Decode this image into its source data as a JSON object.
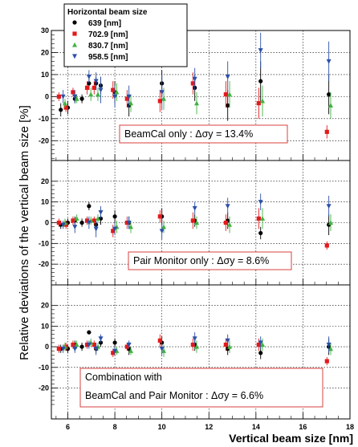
{
  "chart_data": {
    "type": "scatter",
    "ylabel": "Relative deviations of the vertical beam size [%]",
    "xlabel": "Vertical beam size [nm]",
    "xlim": [
      5.3,
      18
    ],
    "x_ticks": [
      "6",
      "8",
      "10",
      "12",
      "14",
      "16",
      "18"
    ],
    "legend": {
      "title": "Horizontal beam size",
      "placement": "top-left",
      "entries": [
        {
          "label": "639 [nm]",
          "color": "#000000",
          "marker": "circle"
        },
        {
          "label": "702.9 [nm]",
          "color": "#e31a1c",
          "marker": "square"
        },
        {
          "label": "830.7 [nm]",
          "color": "#41b341",
          "marker": "triangle-up"
        },
        {
          "label": "958.5 [nm]",
          "color": "#2c4fa8",
          "marker": "triangle-down"
        }
      ]
    },
    "grid": true,
    "panels": [
      {
        "annotation_lines": [
          "BeamCal only : Δσy = 13.4%"
        ],
        "ylim": [
          -30,
          30
        ],
        "y_ticks": [
          "30",
          "20",
          "10",
          "0",
          "-10",
          "-20"
        ],
        "series": [
          {
            "name": "639 [nm]",
            "points": [
              {
                "x": 5.7,
                "y": -6,
                "err": 3
              },
              {
                "x": 6.0,
                "y": -5,
                "err": 3
              },
              {
                "x": 6.3,
                "y": -1,
                "err": 2
              },
              {
                "x": 6.6,
                "y": -1,
                "err": 2
              },
              {
                "x": 6.9,
                "y": 6,
                "err": 3
              },
              {
                "x": 7.2,
                "y": 6,
                "err": 3
              },
              {
                "x": 7.4,
                "y": 5,
                "err": 4
              },
              {
                "x": 8.0,
                "y": 2,
                "err": 5
              },
              {
                "x": 8.6,
                "y": -4,
                "err": 5
              },
              {
                "x": 10.0,
                "y": 6,
                "err": 6
              },
              {
                "x": 11.4,
                "y": 4,
                "err": 6
              },
              {
                "x": 12.8,
                "y": -4,
                "err": 7
              },
              {
                "x": 14.2,
                "y": 7,
                "err": 9
              },
              {
                "x": 17.1,
                "y": 1,
                "err": 9
              }
            ]
          },
          {
            "name": "702.9 [nm]",
            "points": [
              {
                "x": 5.7,
                "y": 0,
                "err": 2
              },
              {
                "x": 6.0,
                "y": -5,
                "err": 2
              },
              {
                "x": 6.3,
                "y": 2,
                "err": 2
              },
              {
                "x": 6.9,
                "y": 4,
                "err": 3
              },
              {
                "x": 7.2,
                "y": 4,
                "err": 3
              },
              {
                "x": 8.0,
                "y": 3,
                "err": 4
              },
              {
                "x": 8.6,
                "y": -1,
                "err": 4
              },
              {
                "x": 10.0,
                "y": -2,
                "err": 5
              },
              {
                "x": 11.4,
                "y": 6,
                "err": 5
              },
              {
                "x": 12.8,
                "y": 1,
                "err": 6
              },
              {
                "x": 14.2,
                "y": -3,
                "err": 7
              },
              {
                "x": 17.1,
                "y": -16,
                "err": 3
              }
            ]
          },
          {
            "name": "830.7 [nm]",
            "points": [
              {
                "x": 5.8,
                "y": -3,
                "err": 2
              },
              {
                "x": 6.3,
                "y": -1,
                "err": 2
              },
              {
                "x": 6.9,
                "y": 1,
                "err": 3
              },
              {
                "x": 7.2,
                "y": 1,
                "err": 3
              },
              {
                "x": 8.0,
                "y": 2,
                "err": 4
              },
              {
                "x": 8.6,
                "y": -3,
                "err": 4
              },
              {
                "x": 10.0,
                "y": -1,
                "err": 5
              },
              {
                "x": 11.4,
                "y": -3,
                "err": 5
              },
              {
                "x": 12.8,
                "y": 1,
                "err": 6
              },
              {
                "x": 14.2,
                "y": -2,
                "err": 7
              },
              {
                "x": 17.1,
                "y": -4,
                "err": 6
              }
            ]
          },
          {
            "name": "958.5 [nm]",
            "points": [
              {
                "x": 5.8,
                "y": 0,
                "err": 3
              },
              {
                "x": 6.3,
                "y": 0,
                "err": 3
              },
              {
                "x": 6.9,
                "y": 9,
                "err": 3
              },
              {
                "x": 7.2,
                "y": 7,
                "err": 4
              },
              {
                "x": 7.4,
                "y": 3,
                "err": 6
              },
              {
                "x": 8.0,
                "y": 0,
                "err": 5
              },
              {
                "x": 8.6,
                "y": 0,
                "err": 5
              },
              {
                "x": 10.0,
                "y": 2,
                "err": 8
              },
              {
                "x": 11.4,
                "y": 8,
                "err": 5
              },
              {
                "x": 12.8,
                "y": 9,
                "err": 7
              },
              {
                "x": 14.2,
                "y": 21,
                "err": 8
              },
              {
                "x": 17.1,
                "y": 16,
                "err": 9
              }
            ]
          }
        ]
      },
      {
        "annotation_lines": [
          "Pair Monitor only : Δσy = 8.6%"
        ],
        "ylim": [
          -30,
          30
        ],
        "y_ticks": [
          "20",
          "10",
          "0",
          "-10",
          "-20"
        ],
        "series": [
          {
            "name": "639 [nm]",
            "points": [
              {
                "x": 5.7,
                "y": -1,
                "err": 2
              },
              {
                "x": 6.0,
                "y": 0,
                "err": 2
              },
              {
                "x": 6.3,
                "y": 1,
                "err": 2
              },
              {
                "x": 6.6,
                "y": 0,
                "err": 2
              },
              {
                "x": 6.9,
                "y": 8,
                "err": 2
              },
              {
                "x": 7.2,
                "y": -1,
                "err": 2
              },
              {
                "x": 7.4,
                "y": 2,
                "err": 3
              },
              {
                "x": 8.0,
                "y": 3,
                "err": 3
              },
              {
                "x": 8.6,
                "y": 0,
                "err": 3
              },
              {
                "x": 10.0,
                "y": 3,
                "err": 4
              },
              {
                "x": 11.4,
                "y": 1,
                "err": 3
              },
              {
                "x": 12.8,
                "y": 1,
                "err": 4
              },
              {
                "x": 14.2,
                "y": -5,
                "err": 3
              },
              {
                "x": 17.1,
                "y": -1,
                "err": 5
              }
            ]
          },
          {
            "name": "702.9 [nm]",
            "points": [
              {
                "x": 5.7,
                "y": 0,
                "err": 2
              },
              {
                "x": 6.0,
                "y": -1,
                "err": 2
              },
              {
                "x": 6.3,
                "y": 1,
                "err": 2
              },
              {
                "x": 6.9,
                "y": 1,
                "err": 2
              },
              {
                "x": 7.2,
                "y": 1,
                "err": 2
              },
              {
                "x": 8.0,
                "y": -4,
                "err": 3
              },
              {
                "x": 8.6,
                "y": 0,
                "err": 3
              },
              {
                "x": 10.0,
                "y": 3,
                "err": 3
              },
              {
                "x": 11.4,
                "y": 1,
                "err": 4
              },
              {
                "x": 12.8,
                "y": 0,
                "err": 4
              },
              {
                "x": 14.2,
                "y": 2,
                "err": 5
              },
              {
                "x": 17.1,
                "y": -11,
                "err": 2
              }
            ]
          },
          {
            "name": "830.7 [nm]",
            "points": [
              {
                "x": 5.8,
                "y": 0,
                "err": 2
              },
              {
                "x": 6.3,
                "y": 2,
                "err": 2
              },
              {
                "x": 6.9,
                "y": 1,
                "err": 2
              },
              {
                "x": 7.2,
                "y": 2,
                "err": 2
              },
              {
                "x": 8.0,
                "y": -2,
                "err": 3
              },
              {
                "x": 8.6,
                "y": -2,
                "err": 3
              },
              {
                "x": 10.0,
                "y": -2,
                "err": 3
              },
              {
                "x": 11.4,
                "y": 0,
                "err": 3
              },
              {
                "x": 12.8,
                "y": -1,
                "err": 4
              },
              {
                "x": 14.2,
                "y": 2,
                "err": 5
              },
              {
                "x": 17.1,
                "y": 0,
                "err": 4
              }
            ]
          },
          {
            "name": "958.5 [nm]",
            "points": [
              {
                "x": 5.8,
                "y": -1,
                "err": 2
              },
              {
                "x": 6.3,
                "y": -2,
                "err": 3
              },
              {
                "x": 6.9,
                "y": 0,
                "err": 3
              },
              {
                "x": 7.2,
                "y": -3,
                "err": 4
              },
              {
                "x": 7.4,
                "y": 5,
                "err": 3
              },
              {
                "x": 8.0,
                "y": -3,
                "err": 3
              },
              {
                "x": 8.6,
                "y": 0,
                "err": 3
              },
              {
                "x": 10.0,
                "y": -4,
                "err": 4
              },
              {
                "x": 11.4,
                "y": 7,
                "err": 3
              },
              {
                "x": 12.8,
                "y": 8,
                "err": 4
              },
              {
                "x": 14.2,
                "y": 10,
                "err": 4
              },
              {
                "x": 17.1,
                "y": 8,
                "err": 5
              }
            ]
          }
        ]
      },
      {
        "annotation_lines": [
          "Combination with",
          "BeamCal and Pair Monitor : Δσy = 6.6%"
        ],
        "ylim": [
          -30,
          30
        ],
        "y_ticks": [
          "20",
          "10",
          "0",
          "-10",
          "-20"
        ],
        "series": [
          {
            "name": "639 [nm]",
            "points": [
              {
                "x": 5.7,
                "y": -1,
                "err": 2
              },
              {
                "x": 6.0,
                "y": -1,
                "err": 2
              },
              {
                "x": 6.3,
                "y": 1,
                "err": 2
              },
              {
                "x": 6.6,
                "y": 0,
                "err": 2
              },
              {
                "x": 6.9,
                "y": 7,
                "err": 1
              },
              {
                "x": 7.2,
                "y": -1,
                "err": 2
              },
              {
                "x": 7.4,
                "y": 2,
                "err": 2
              },
              {
                "x": 8.0,
                "y": 2,
                "err": 2
              },
              {
                "x": 8.6,
                "y": -1,
                "err": 3
              },
              {
                "x": 10.0,
                "y": 2,
                "err": 3
              },
              {
                "x": 11.4,
                "y": 1,
                "err": 3
              },
              {
                "x": 12.8,
                "y": -1,
                "err": 3
              },
              {
                "x": 14.2,
                "y": -3,
                "err": 3
              },
              {
                "x": 17.1,
                "y": 0,
                "err": 4
              }
            ]
          },
          {
            "name": "702.9 [nm]",
            "points": [
              {
                "x": 5.7,
                "y": -1,
                "err": 2
              },
              {
                "x": 6.0,
                "y": 0,
                "err": 2
              },
              {
                "x": 6.3,
                "y": 1,
                "err": 2
              },
              {
                "x": 6.9,
                "y": 1,
                "err": 2
              },
              {
                "x": 7.2,
                "y": 1,
                "err": 2
              },
              {
                "x": 8.0,
                "y": -3,
                "err": 2
              },
              {
                "x": 8.6,
                "y": 0,
                "err": 2
              },
              {
                "x": 10.0,
                "y": 3,
                "err": 3
              },
              {
                "x": 11.4,
                "y": 1,
                "err": 3
              },
              {
                "x": 12.8,
                "y": 1,
                "err": 3
              },
              {
                "x": 14.2,
                "y": 1,
                "err": 3
              },
              {
                "x": 17.1,
                "y": -7,
                "err": 2
              }
            ]
          },
          {
            "name": "830.7 [nm]",
            "points": [
              {
                "x": 5.8,
                "y": 0,
                "err": 2
              },
              {
                "x": 6.3,
                "y": 1,
                "err": 2
              },
              {
                "x": 6.9,
                "y": 2,
                "err": 2
              },
              {
                "x": 7.2,
                "y": 0,
                "err": 2
              },
              {
                "x": 8.0,
                "y": -2,
                "err": 2
              },
              {
                "x": 8.6,
                "y": -2,
                "err": 2
              },
              {
                "x": 10.0,
                "y": -2,
                "err": 3
              },
              {
                "x": 11.4,
                "y": 0,
                "err": 3
              },
              {
                "x": 12.8,
                "y": 0,
                "err": 3
              },
              {
                "x": 14.2,
                "y": 1,
                "err": 3
              },
              {
                "x": 17.1,
                "y": -1,
                "err": 3
              }
            ]
          },
          {
            "name": "958.5 [nm]",
            "points": [
              {
                "x": 5.8,
                "y": -1,
                "err": 2
              },
              {
                "x": 6.3,
                "y": -1,
                "err": 2
              },
              {
                "x": 6.9,
                "y": 1,
                "err": 2
              },
              {
                "x": 7.2,
                "y": -1,
                "err": 3
              },
              {
                "x": 7.4,
                "y": 4,
                "err": 2
              },
              {
                "x": 8.0,
                "y": -2,
                "err": 2
              },
              {
                "x": 8.6,
                "y": 1,
                "err": 2
              },
              {
                "x": 10.0,
                "y": -1,
                "err": 3
              },
              {
                "x": 11.4,
                "y": 4,
                "err": 3
              },
              {
                "x": 12.8,
                "y": 3,
                "err": 3
              },
              {
                "x": 14.2,
                "y": 2,
                "err": 3
              },
              {
                "x": 17.1,
                "y": 1,
                "err": 4
              }
            ]
          }
        ]
      }
    ]
  }
}
